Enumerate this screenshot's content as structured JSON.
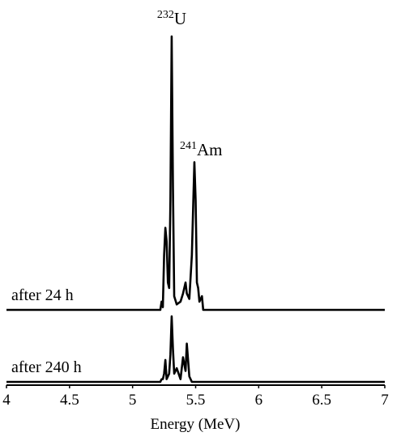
{
  "chart_data": {
    "type": "line",
    "x": [
      4.0,
      5.2,
      5.22,
      5.23,
      5.24,
      5.25,
      5.26,
      5.27,
      5.28,
      5.29,
      5.3,
      5.31,
      5.32,
      5.33,
      5.35,
      5.38,
      5.4,
      5.42,
      5.43,
      5.45,
      5.47,
      5.49,
      5.5,
      5.51,
      5.52,
      5.53,
      5.55,
      5.56,
      7.0
    ],
    "series": [
      {
        "name": "after 24 h",
        "color": "#000000",
        "values": [
          0,
          0,
          0,
          3,
          1,
          20,
          30,
          25,
          10,
          8,
          40,
          100,
          45,
          5,
          2,
          3,
          6,
          10,
          6,
          4,
          20,
          54,
          40,
          10,
          8,
          3,
          5,
          0,
          0
        ]
      },
      {
        "name": "after 240 h",
        "color": "#000000",
        "values": [
          0,
          0,
          0,
          1,
          1,
          3,
          8,
          1,
          2,
          3,
          10,
          24,
          12,
          3,
          5,
          1,
          9,
          4,
          14,
          2,
          0,
          0,
          0,
          0,
          0,
          0,
          0,
          0,
          0
        ]
      }
    ],
    "annotations": [
      {
        "superscript": "232",
        "text": "U",
        "x": 5.31
      },
      {
        "superscript": "241",
        "text": "Am",
        "x": 5.49
      }
    ],
    "xlabel": "Energy (MeV)",
    "xlim": [
      4,
      7
    ],
    "xticks": [
      4,
      4.5,
      5,
      5.5,
      6,
      6.5,
      7
    ],
    "ylim": [
      0,
      100
    ]
  }
}
